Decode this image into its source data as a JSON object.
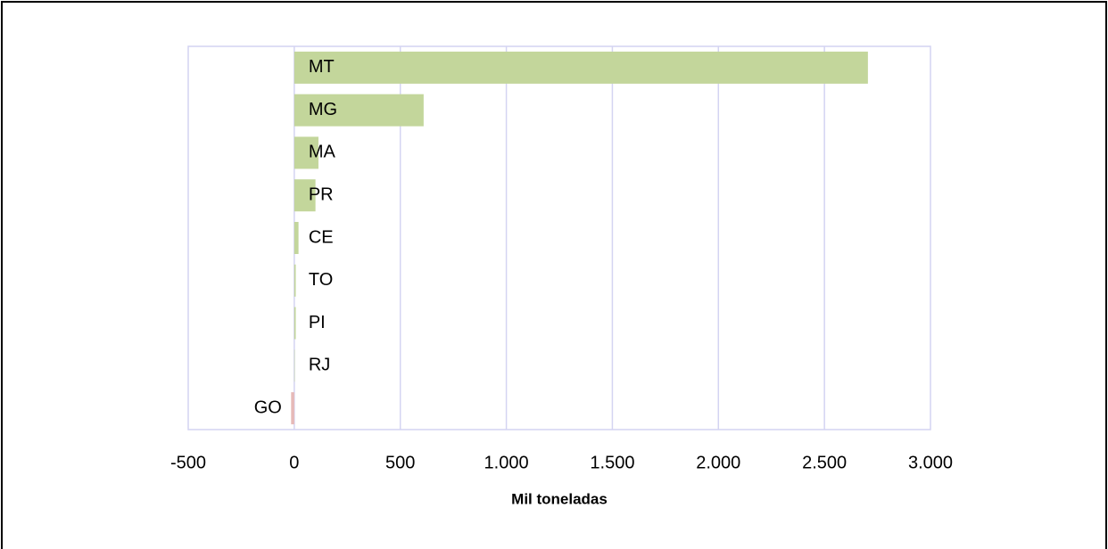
{
  "chart_data": {
    "type": "bar",
    "orientation": "horizontal",
    "x_label": "Mil toneladas",
    "categories": [
      "MT",
      "MG",
      "MA",
      "PR",
      "CE",
      "TO",
      "PI",
      "RJ",
      "GO"
    ],
    "values": [
      2705,
      610,
      114,
      100,
      20,
      7,
      7,
      1,
      -15
    ],
    "color": "#c3d69b",
    "negative_color": "#e6b9b8",
    "xlim": [
      -500,
      3000
    ],
    "xticks": [
      -500,
      0,
      500,
      {
        "value": 1000,
        "label": "1.000"
      },
      {
        "value": 1500,
        "label": "1.500"
      },
      {
        "value": 2000,
        "label": "2.000"
      },
      {
        "value": 2500,
        "label": "2.500"
      },
      {
        "value": 3000,
        "label": "3.000"
      }
    ],
    "grid": true
  }
}
